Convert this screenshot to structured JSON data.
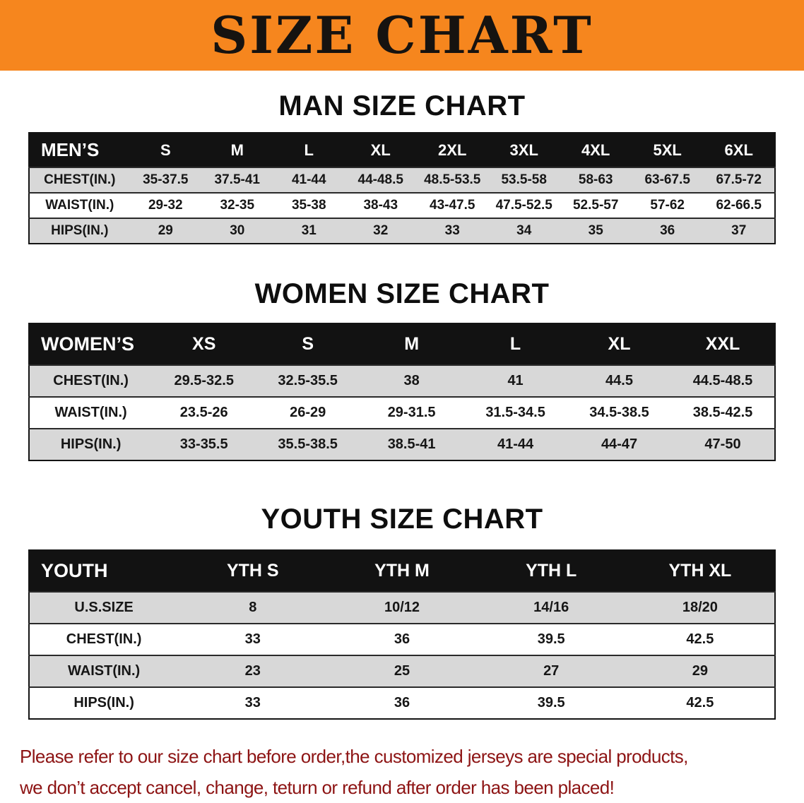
{
  "banner": {
    "title": "SIZE CHART",
    "bg_color": "#f6861e",
    "text_color": "#161310"
  },
  "colors": {
    "banner_orange": "#f6861e",
    "table_header_black": "#121212",
    "row_shade_gray": "#d8d8d8",
    "footer_red": "#8d1414"
  },
  "sections": [
    {
      "heading": "MAN SIZE CHART",
      "label": "MEN’S",
      "cols": [
        "S",
        "M",
        "L",
        "XL",
        "2XL",
        "3XL",
        "4XL",
        "5XL",
        "6XL"
      ],
      "rows": [
        {
          "label": "CHEST(IN.)",
          "values": [
            "35-37.5",
            "37.5-41",
            "41-44",
            "44-48.5",
            "48.5-53.5",
            "53.5-58",
            "58-63",
            "63-67.5",
            "67.5-72"
          ]
        },
        {
          "label": "WAIST(IN.)",
          "values": [
            "29-32",
            "32-35",
            "35-38",
            "38-43",
            "43-47.5",
            "47.5-52.5",
            "52.5-57",
            "57-62",
            "62-66.5"
          ]
        },
        {
          "label": "HIPS(IN.)",
          "values": [
            "29",
            "30",
            "31",
            "32",
            "33",
            "34",
            "35",
            "36",
            "37"
          ]
        }
      ]
    },
    {
      "heading": "WOMEN SIZE CHART",
      "label": "WOMEN’S",
      "cols": [
        "XS",
        "S",
        "M",
        "L",
        "XL",
        "XXL"
      ],
      "rows": [
        {
          "label": "CHEST(IN.)",
          "values": [
            "29.5-32.5",
            "32.5-35.5",
            "38",
            "41",
            "44.5",
            "44.5-48.5"
          ]
        },
        {
          "label": "WAIST(IN.)",
          "values": [
            "23.5-26",
            "26-29",
            "29-31.5",
            "31.5-34.5",
            "34.5-38.5",
            "38.5-42.5"
          ]
        },
        {
          "label": "HIPS(IN.)",
          "values": [
            "33-35.5",
            "35.5-38.5",
            "38.5-41",
            "41-44",
            "44-47",
            "47-50"
          ]
        }
      ]
    },
    {
      "heading": "YOUTH SIZE CHART",
      "label": "YOUTH",
      "cols": [
        "YTH S",
        "YTH M",
        "YTH L",
        "YTH XL"
      ],
      "rows": [
        {
          "label": "U.S.SIZE",
          "values": [
            "8",
            "10/12",
            "14/16",
            "18/20"
          ]
        },
        {
          "label": "CHEST(IN.)",
          "values": [
            "33",
            "36",
            "39.5",
            "42.5"
          ]
        },
        {
          "label": "WAIST(IN.)",
          "values": [
            "23",
            "25",
            "27",
            "29"
          ]
        },
        {
          "label": "HIPS(IN.)",
          "values": [
            "33",
            "36",
            "39.5",
            "42.5"
          ]
        }
      ]
    }
  ],
  "footer": {
    "line1": "Please refer to our size chart before order,the customized jerseys are special products,",
    "line2": "we don’t accept cancel, change, teturn or refund after order has been placed!"
  }
}
